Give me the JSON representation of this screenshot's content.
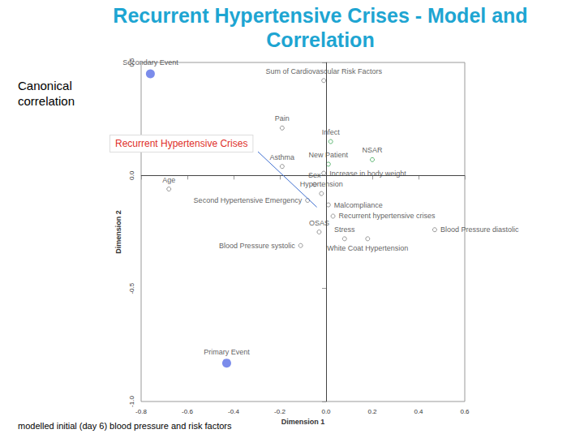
{
  "slide": {
    "title": "Recurrent Hypertensive Crises - Model and Correlation",
    "side_label": "Canonical correlation",
    "caption": "modelled initial (day 6) blood pressure and risk factors"
  },
  "chart_data": {
    "type": "scatter",
    "xlabel": "Dimension 1",
    "ylabel": "Dimension 2",
    "xlim": [
      -0.8,
      0.6
    ],
    "xticks": [
      -0.8,
      -0.6,
      -0.4,
      -0.2,
      {
        "value": 0,
        "label": "0.0"
      },
      0.2,
      0.4,
      0.6
    ],
    "ylim": [
      -1,
      0.5
    ],
    "yticks": [
      {
        "value": -1,
        "label": "-1.0"
      },
      -0.5,
      {
        "value": 0,
        "label": "0.0"
      },
      0.5
    ],
    "grid": false,
    "reference_lines": [
      {
        "axis": "x",
        "value": 0
      },
      {
        "axis": "y",
        "value": 0
      }
    ],
    "annotations": [
      {
        "text": "Recurrent Hypertensive Crises",
        "x": -0.04,
        "y": -0.14
      }
    ],
    "series": [
      {
        "color": "#5a6fe6",
        "marker": "circle",
        "x": [
          -0.76,
          -0.43
        ],
        "y": [
          0.45,
          -0.83
        ],
        "labels": [
          "Secondary Event",
          "Primary Event"
        ]
      },
      {
        "color": "#808080",
        "marker": "open_circle",
        "x": [
          -0.01,
          -0.19,
          -0.19,
          -0.01,
          -0.05,
          -0.68,
          -0.02,
          -0.08,
          0.01,
          0.03,
          -0.03,
          0.08,
          0.18,
          -0.11,
          0.47
        ],
        "y": [
          0.42,
          0.21,
          0.04,
          0.01,
          -0.04,
          -0.06,
          -0.08,
          -0.11,
          -0.13,
          -0.18,
          -0.25,
          -0.28,
          -0.28,
          -0.31,
          -0.24
        ],
        "labels": [
          "Sum of Cardiovascular Risk Factors",
          "Pain",
          "Asthma",
          "Increase in body weight",
          "Sex",
          "Age",
          "Hypertension",
          "Second Hypertensive Emergency",
          "Malcompliance",
          "Recurrent hypertensive crises",
          "OSAS",
          "Stress",
          "White Coat Hypertension",
          "Blood Pressure systolic",
          "Blood Pressure diastolic"
        ]
      },
      {
        "color": "#3aa655",
        "marker": "open_circle",
        "x": [
          0.02,
          0.01,
          0.2
        ],
        "y": [
          0.15,
          0.05,
          0.07
        ],
        "labels": [
          "Infect",
          "New Patient",
          "NSAR"
        ]
      }
    ]
  }
}
